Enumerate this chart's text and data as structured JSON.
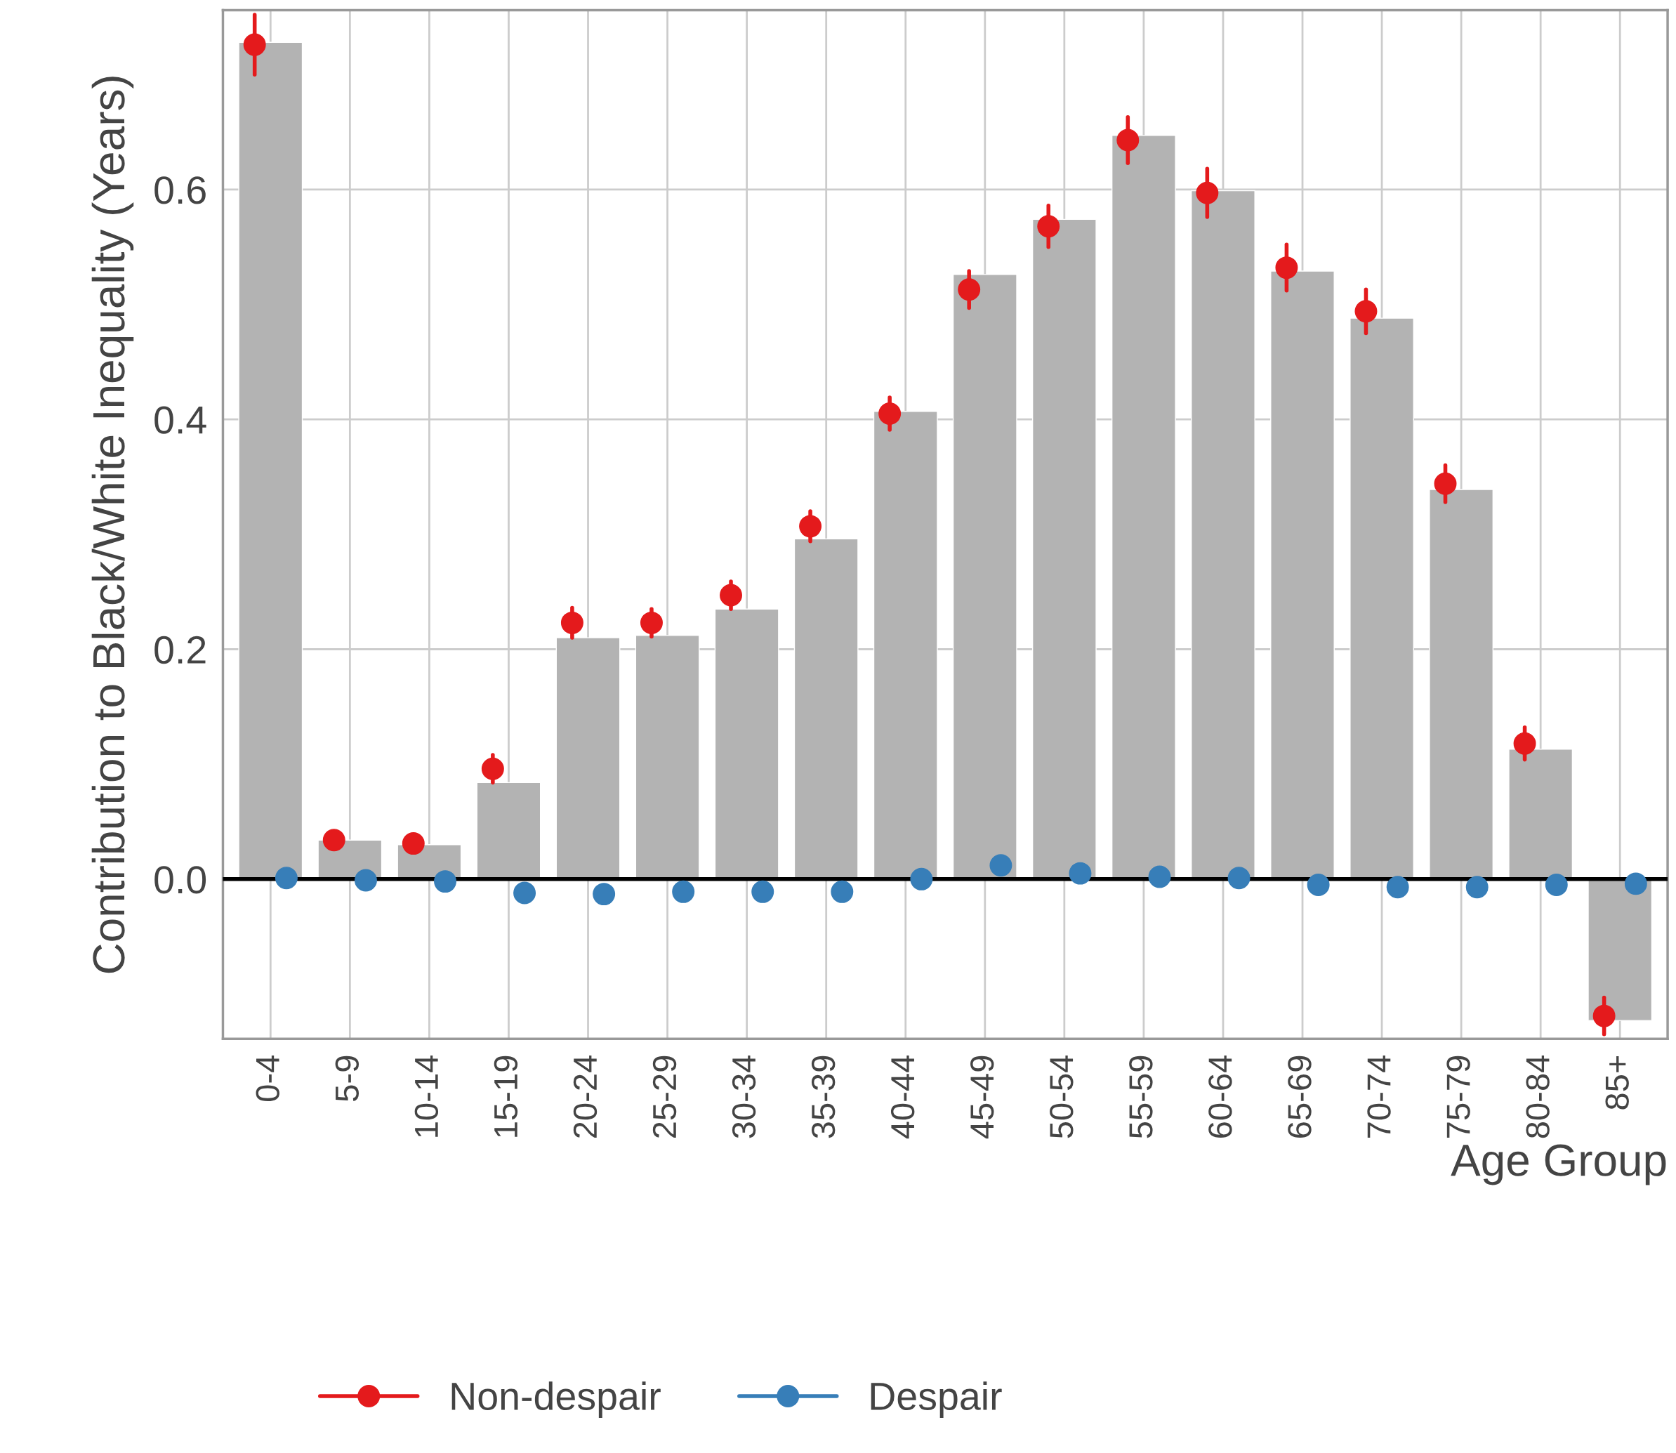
{
  "chart_data": {
    "type": "bar",
    "xlabel": "Age Group",
    "ylabel": "Contribution to Black/White Inequality (Years)",
    "categories": [
      "0-4",
      "5-9",
      "10-14",
      "15-19",
      "20-24",
      "25-29",
      "30-34",
      "35-39",
      "40-44",
      "45-49",
      "50-54",
      "55-59",
      "60-64",
      "65-69",
      "70-74",
      "75-79",
      "80-84",
      "85+"
    ],
    "series": [
      {
        "color": "#b3b3b3",
        "values": [
          0.728,
          0.034,
          0.03,
          0.084,
          0.21,
          0.212,
          0.235,
          0.296,
          0.407,
          0.526,
          0.574,
          0.647,
          0.599,
          0.529,
          0.488,
          0.339,
          0.113,
          -0.123
        ]
      },
      {
        "type": "scatter",
        "name": "Non-despair",
        "color": "#e41a1c",
        "values": [
          0.726,
          0.034,
          0.031,
          0.096,
          0.223,
          0.223,
          0.247,
          0.307,
          0.405,
          0.513,
          0.568,
          0.643,
          0.597,
          0.532,
          0.494,
          0.344,
          0.118,
          -0.119
        ],
        "errors": [
          0.026,
          null,
          null,
          0.012,
          0.013,
          0.012,
          0.012,
          0.013,
          0.014,
          0.016,
          0.018,
          0.02,
          0.021,
          0.02,
          0.019,
          0.016,
          0.014,
          0.016
        ]
      },
      {
        "type": "scatter",
        "name": "Despair",
        "color": "#377eb8",
        "values": [
          0.001,
          -0.001,
          -0.002,
          -0.012,
          -0.013,
          -0.011,
          -0.011,
          -0.011,
          0.0,
          0.012,
          0.005,
          0.002,
          0.001,
          -0.005,
          -0.007,
          -0.007,
          -0.005,
          -0.004
        ]
      }
    ],
    "ylim": [
      -0.139,
      0.756
    ],
    "yticks": [
      {
        "value": 0,
        "label": "0.0"
      },
      0.2,
      0.4,
      0.6
    ],
    "ref_lines": [
      {
        "axis": "y",
        "value": 0,
        "color": "#000000",
        "line_style": "solid"
      }
    ],
    "grid": true,
    "legend": "bottom",
    "marker": "circle"
  }
}
